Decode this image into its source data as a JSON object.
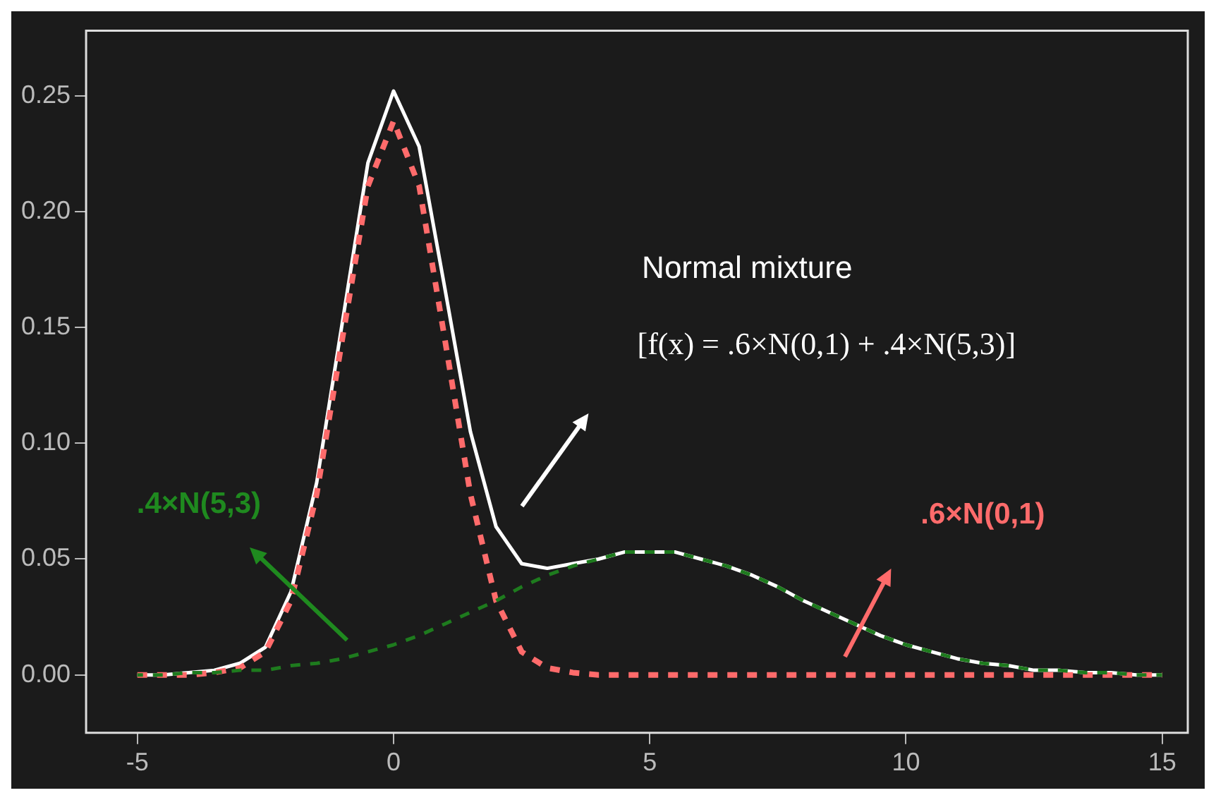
{
  "chart_data": {
    "type": "line",
    "x": [
      -5,
      -4.5,
      -4,
      -3.5,
      -3,
      -2.5,
      -2,
      -1.5,
      -1,
      -0.5,
      0,
      0.5,
      1,
      1.5,
      2,
      2.5,
      3,
      3.5,
      4,
      4.5,
      5,
      5.5,
      6,
      6.5,
      7,
      7.5,
      8,
      8.5,
      9,
      9.5,
      10,
      10.5,
      11,
      11.5,
      12,
      12.5,
      13,
      13.5,
      14,
      14.5,
      15
    ],
    "series": [
      {
        "color": "#ffffff",
        "line_style": "solid",
        "values": [
          0.0,
          0.0,
          0.001,
          0.002,
          0.005,
          0.012,
          0.036,
          0.083,
          0.152,
          0.221,
          0.252,
          0.228,
          0.167,
          0.105,
          0.064,
          0.048,
          0.046,
          0.048,
          0.05,
          0.053,
          0.053,
          0.053,
          0.05,
          0.047,
          0.043,
          0.038,
          0.032,
          0.027,
          0.022,
          0.017,
          0.013,
          0.01,
          0.007,
          0.005,
          0.004,
          0.002,
          0.002,
          0.001,
          0.001,
          0.0,
          0.0
        ]
      },
      {
        "color": "#ff6b6b",
        "line_style": "dashed",
        "values": [
          0,
          0,
          0,
          0.001,
          0.003,
          0.01,
          0.032,
          0.078,
          0.145,
          0.211,
          0.239,
          0.211,
          0.145,
          0.078,
          0.032,
          0.01,
          0.003,
          0.001,
          0,
          0,
          0,
          0,
          0,
          0,
          0,
          0,
          0,
          0,
          0,
          0,
          0,
          0,
          0,
          0,
          0,
          0,
          0,
          0,
          0,
          0,
          0
        ]
      },
      {
        "color": "#1e7b1e",
        "line_style": "dashed",
        "values": [
          0.0,
          0.0,
          0.001,
          0.001,
          0.002,
          0.002,
          0.004,
          0.005,
          0.007,
          0.01,
          0.013,
          0.017,
          0.022,
          0.027,
          0.032,
          0.038,
          0.043,
          0.047,
          0.05,
          0.053,
          0.053,
          0.053,
          0.05,
          0.047,
          0.043,
          0.038,
          0.032,
          0.027,
          0.022,
          0.017,
          0.013,
          0.01,
          0.007,
          0.005,
          0.004,
          0.002,
          0.002,
          0.001,
          0.001,
          0.0,
          0.0
        ]
      }
    ],
    "annotations": [
      "Normal mixture",
      "[f(x) = .6×N(0,1) + .4×N(5,3)]",
      ".4×N(5,3)",
      ".6×N(0,1)"
    ],
    "xlim": [
      -6,
      15.5
    ],
    "xticks": [
      -5,
      0,
      5,
      10,
      15
    ],
    "ylim": [
      -0.025,
      0.278
    ],
    "yticks": [
      {
        "value": 0,
        "label": "0.00"
      },
      {
        "value": 0.05,
        "label": "0.05"
      },
      {
        "value": 0.1,
        "label": "0.10"
      },
      {
        "value": 0.15,
        "label": "0.15"
      },
      {
        "value": 0.2,
        "label": "0.20"
      },
      {
        "value": 0.25,
        "label": "0.25"
      }
    ],
    "marker": "none",
    "grid": false,
    "legend": false
  }
}
